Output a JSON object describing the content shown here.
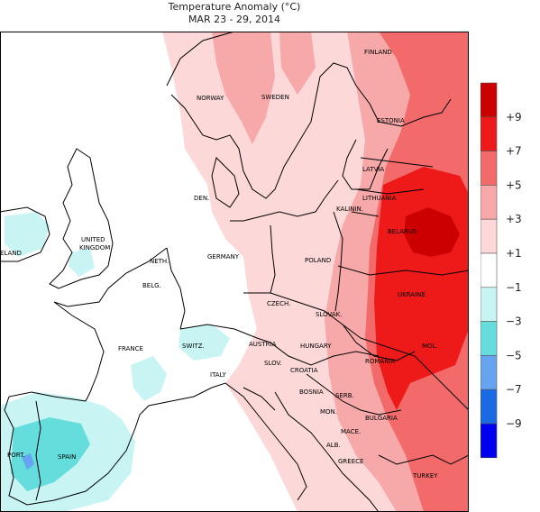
{
  "title": {
    "line1": "Temperature Anomaly (°C)",
    "line2": "MAR 23 - 29, 2014"
  },
  "chart_data": {
    "type": "heatmap",
    "title": "Temperature Anomaly (°C)",
    "subtitle": "MAR 23 - 29, 2014",
    "colorbar": {
      "bins": [
        {
          "range": [
            7,
            11
          ],
          "color": "#cc0000"
        },
        {
          "range": [
            5,
            7
          ],
          "color": "#ee1a1a"
        },
        {
          "range": [
            3,
            5
          ],
          "color": "#f26a6a"
        },
        {
          "range": [
            1,
            3
          ],
          "color": "#f7a8a8"
        },
        {
          "range": [
            -1,
            1
          ],
          "color": "#fcd8d8"
        },
        {
          "range": [
            -1,
            -1
          ],
          "color": "#ffffff"
        },
        {
          "range": [
            -3,
            -1
          ],
          "color": "#c8f4f4"
        },
        {
          "range": [
            -5,
            -3
          ],
          "color": "#66dddd"
        },
        {
          "range": [
            -7,
            -5
          ],
          "color": "#66a3f0"
        },
        {
          "range": [
            -9,
            -7
          ],
          "color": "#1a6ae6"
        },
        {
          "range": [
            -11,
            -9
          ],
          "color": "#0000ee"
        }
      ],
      "tick_values": [
        9,
        7,
        5,
        3,
        1,
        -1,
        -3,
        -5,
        -7,
        -9
      ],
      "tick_labels": [
        "+9",
        "+7",
        "+5",
        "+3",
        "+1",
        "−1",
        "−3",
        "−5",
        "−7",
        "−9"
      ]
    },
    "country_labels": [
      {
        "name": "FINLAND"
      },
      {
        "name": "NORWAY"
      },
      {
        "name": "SWEDEN"
      },
      {
        "name": "ESTONIA"
      },
      {
        "name": "LATVIA"
      },
      {
        "name": "DEN."
      },
      {
        "name": "LITHUANIA"
      },
      {
        "name": "KALININ."
      },
      {
        "name": "BELARUS"
      },
      {
        "name": "UNITED"
      },
      {
        "name": "KINGDOM"
      },
      {
        "name": "ELAND"
      },
      {
        "name": "GERMANY"
      },
      {
        "name": "POLAND"
      },
      {
        "name": "NETH."
      },
      {
        "name": "BELG."
      },
      {
        "name": "UKRAINE"
      },
      {
        "name": "CZECH."
      },
      {
        "name": "SLOVAK."
      },
      {
        "name": "AUSTRIA"
      },
      {
        "name": "HUNGARY"
      },
      {
        "name": "FRANCE"
      },
      {
        "name": "SWITZ."
      },
      {
        "name": "MOL."
      },
      {
        "name": "SLOV."
      },
      {
        "name": "CROATIA"
      },
      {
        "name": "ROMANIA"
      },
      {
        "name": "ITALY"
      },
      {
        "name": "BOSNIA"
      },
      {
        "name": "SERB."
      },
      {
        "name": "MON."
      },
      {
        "name": "BULGARIA"
      },
      {
        "name": "MACE."
      },
      {
        "name": "ALB."
      },
      {
        "name": "PORT."
      },
      {
        "name": "SPAIN"
      },
      {
        "name": "GREECE"
      },
      {
        "name": "TURKEY"
      }
    ]
  }
}
